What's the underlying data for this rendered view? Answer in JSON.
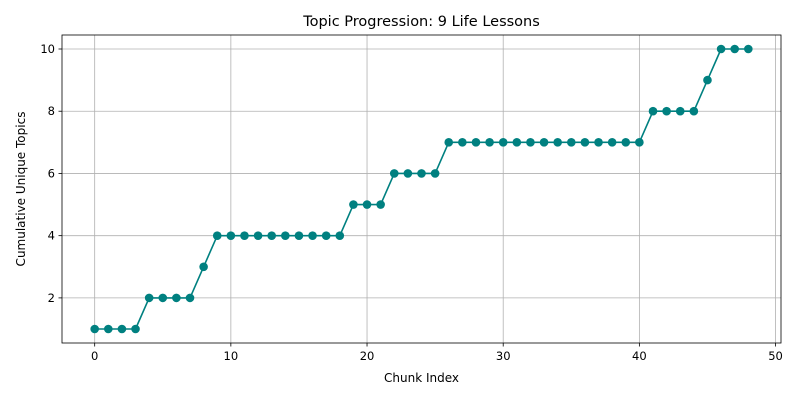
{
  "chart_data": {
    "type": "line",
    "title": "Topic Progression: 9 Life Lessons",
    "xlabel": "Chunk Index",
    "ylabel": "Cumulative Unique Topics",
    "xlim": [
      -2.4,
      50.4
    ],
    "ylim": [
      0.55,
      10.45
    ],
    "xticks": [
      0,
      10,
      20,
      30,
      40,
      50
    ],
    "yticks": [
      2,
      4,
      6,
      8,
      10
    ],
    "grid": true,
    "color": "#008080",
    "marker": "circle",
    "series": [
      {
        "x": [
          0,
          1,
          2,
          3,
          4,
          5,
          6,
          7,
          8,
          9,
          10,
          11,
          12,
          13,
          14,
          15,
          16,
          17,
          18,
          19,
          20,
          21,
          22,
          23,
          24,
          25,
          26,
          27,
          28,
          29,
          30,
          31,
          32,
          33,
          34,
          35,
          36,
          37,
          38,
          39,
          40,
          41,
          42,
          43,
          44,
          45,
          46,
          47,
          48
        ],
        "values": [
          1,
          1,
          1,
          1,
          2,
          2,
          2,
          2,
          3,
          4,
          4,
          4,
          4,
          4,
          4,
          4,
          4,
          4,
          4,
          5,
          5,
          5,
          6,
          6,
          6,
          6,
          7,
          7,
          7,
          7,
          7,
          7,
          7,
          7,
          7,
          7,
          7,
          7,
          7,
          7,
          7,
          8,
          8,
          8,
          8,
          9,
          10,
          10,
          10
        ]
      }
    ]
  }
}
